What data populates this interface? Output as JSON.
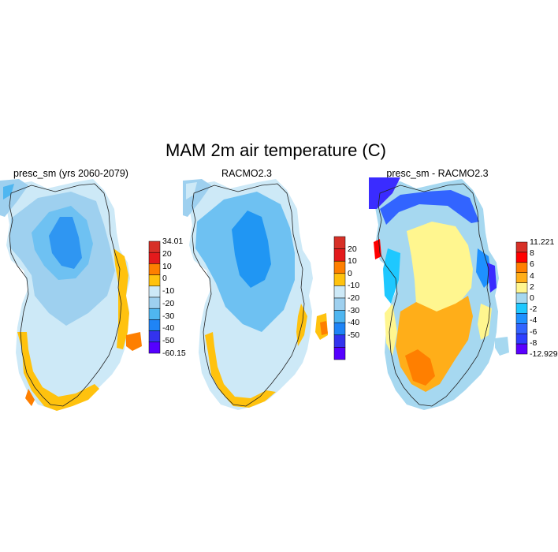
{
  "figure": {
    "title": "MAM 2m air temperature (C)"
  },
  "panels": [
    {
      "title": "presc_sm (yrs 2060-2079)",
      "colorbar": {
        "labels": [
          "34.01",
          "20",
          "10",
          "0",
          "-10",
          "-20",
          "-30",
          "-40",
          "-50",
          "-60.15"
        ],
        "colors": [
          "#d73027",
          "#e31a1c",
          "#fe7f00",
          "#ffc20e",
          "#cde9f7",
          "#9ed0ef",
          "#4fb6f0",
          "#1f84f6",
          "#3333ee",
          "#5500ff"
        ]
      }
    },
    {
      "title": "RACMO2.3",
      "colorbar": {
        "labels": [
          "20",
          "10",
          "0",
          "-10",
          "-20",
          "-30",
          "-40",
          "-50"
        ],
        "colors": [
          "#d73027",
          "#e31a1c",
          "#fe7f00",
          "#ffc20e",
          "#cde9f7",
          "#9ed0ef",
          "#4fb6f0",
          "#1f84f6",
          "#3333ee",
          "#5500ff"
        ]
      }
    },
    {
      "title": "presc_sm - RACMO2.3",
      "colorbar": {
        "labels": [
          "11.221",
          "8",
          "6",
          "4",
          "2",
          "0",
          "-2",
          "-4",
          "-6",
          "-8",
          "-12.929"
        ],
        "colors": [
          "#d73027",
          "#ff0000",
          "#ff7f00",
          "#ffae19",
          "#fff68f",
          "#a6d8f0",
          "#1ec8ff",
          "#1e90ff",
          "#3264ff",
          "#2e3fff",
          "#5a00ff"
        ]
      }
    }
  ]
}
